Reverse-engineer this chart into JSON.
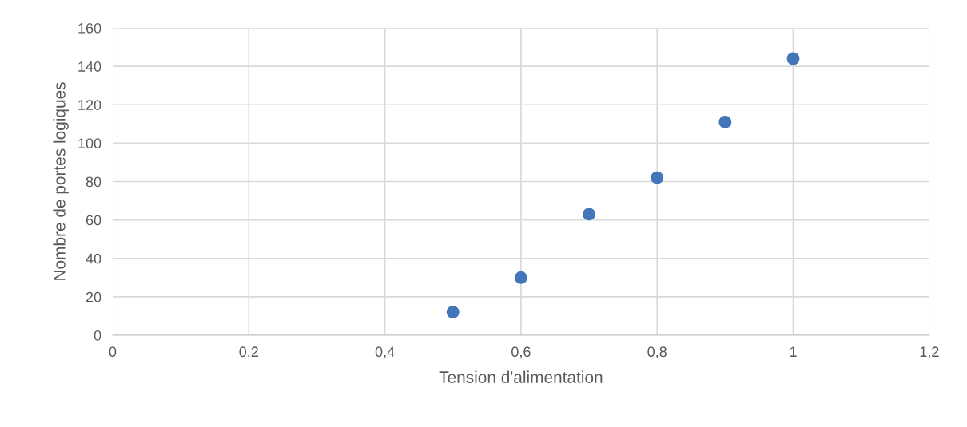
{
  "chart_data": {
    "type": "scatter",
    "xlabel": "Tension d'alimentation",
    "ylabel": "Nombre de portes logiques",
    "x": [
      0.5,
      0.6,
      0.7,
      0.8,
      0.9,
      1.0
    ],
    "series": [
      {
        "color": "#4275b9",
        "values": [
          12,
          30,
          63,
          82,
          111,
          144
        ]
      }
    ],
    "xlim": [
      0,
      1.2
    ],
    "xticks": [
      0,
      {
        "value": 0.2,
        "label": "0,2"
      },
      {
        "value": 0.4,
        "label": "0,4"
      },
      {
        "value": 0.6,
        "label": "0,6"
      },
      {
        "value": 0.8,
        "label": "0,8"
      },
      1,
      {
        "value": 1.2,
        "label": "1,2"
      }
    ],
    "ylim": [
      0,
      160
    ],
    "yticks": [
      0,
      20,
      40,
      60,
      80,
      100,
      120,
      140,
      160
    ],
    "grid": true,
    "marker": "circle"
  }
}
